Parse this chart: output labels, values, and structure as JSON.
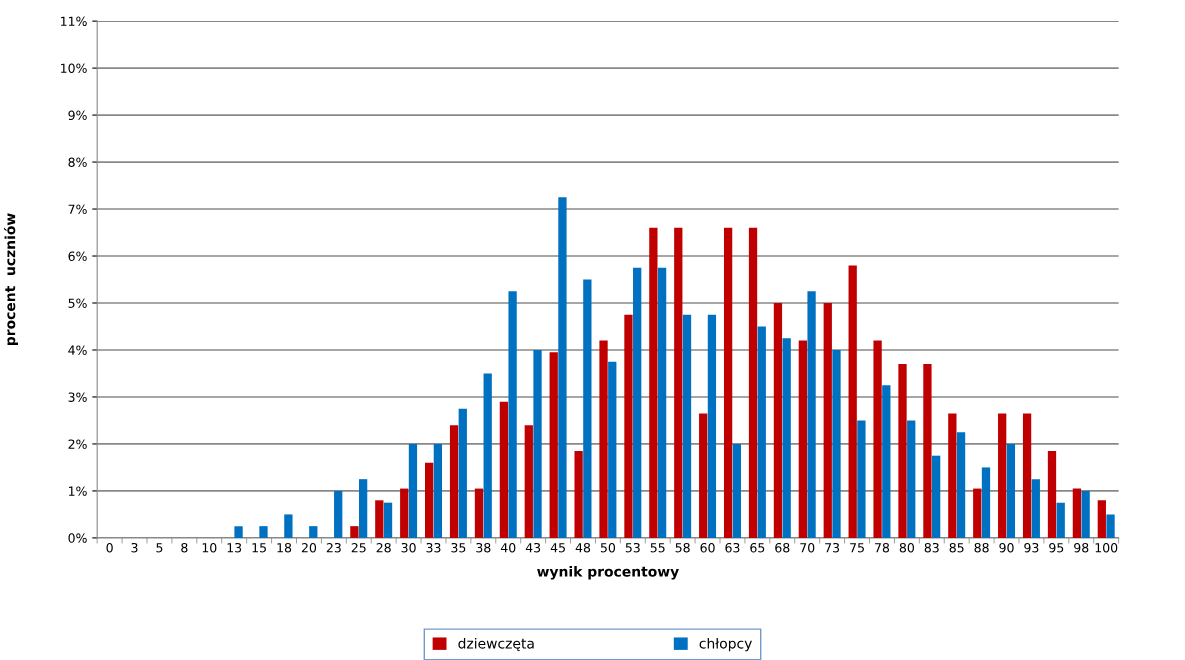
{
  "chart_data": {
    "type": "bar",
    "xlabel": "wynik procentowy",
    "ylabel": "procent  uczniów",
    "categories": [
      "0",
      "3",
      "5",
      "8",
      "10",
      "13",
      "15",
      "18",
      "20",
      "23",
      "25",
      "28",
      "30",
      "33",
      "35",
      "38",
      "40",
      "43",
      "45",
      "48",
      "50",
      "53",
      "55",
      "58",
      "60",
      "63",
      "65",
      "68",
      "70",
      "73",
      "75",
      "78",
      "80",
      "83",
      "85",
      "88",
      "90",
      "93",
      "95",
      "98",
      "100"
    ],
    "series": [
      {
        "name": "dziewczęta",
        "color": "#c00000",
        "values": [
          0,
          0,
          0,
          0,
          0,
          0,
          0,
          0,
          0,
          0,
          0.25,
          0.8,
          1.05,
          1.6,
          2.4,
          1.05,
          2.9,
          2.4,
          3.95,
          1.85,
          4.2,
          4.75,
          6.6,
          6.6,
          2.65,
          6.6,
          6.6,
          5.0,
          4.2,
          5.0,
          5.8,
          4.2,
          3.7,
          3.7,
          2.65,
          1.05,
          2.65,
          2.65,
          1.85,
          1.05,
          0.8
        ]
      },
      {
        "name": "chłopcy",
        "color": "#0070c0",
        "values": [
          0,
          0,
          0,
          0,
          0,
          0.25,
          0.25,
          0.5,
          0.25,
          1.0,
          1.25,
          0.75,
          2.0,
          2.0,
          2.75,
          3.5,
          5.25,
          4.0,
          7.25,
          5.5,
          3.75,
          5.75,
          5.75,
          4.75,
          4.75,
          2.0,
          4.5,
          4.25,
          5.25,
          4.0,
          2.5,
          3.25,
          2.5,
          1.75,
          2.25,
          1.5,
          2.0,
          1.25,
          0.75,
          1.0,
          0.5
        ]
      }
    ],
    "ylim": [
      0,
      11
    ],
    "yticks": [
      {
        "value": 0,
        "label": "0%"
      },
      {
        "value": 1,
        "label": "1%"
      },
      {
        "value": 2,
        "label": "2%"
      },
      {
        "value": 3,
        "label": "3%"
      },
      {
        "value": 4,
        "label": "4%"
      },
      {
        "value": 5,
        "label": "5%"
      },
      {
        "value": 6,
        "label": "6%"
      },
      {
        "value": 7,
        "label": "7%"
      },
      {
        "value": 8,
        "label": "8%"
      },
      {
        "value": 9,
        "label": "9%"
      },
      {
        "value": 10,
        "label": "10%"
      },
      {
        "value": 11,
        "label": "11%"
      }
    ],
    "grid": "y",
    "legend": "bottom"
  }
}
